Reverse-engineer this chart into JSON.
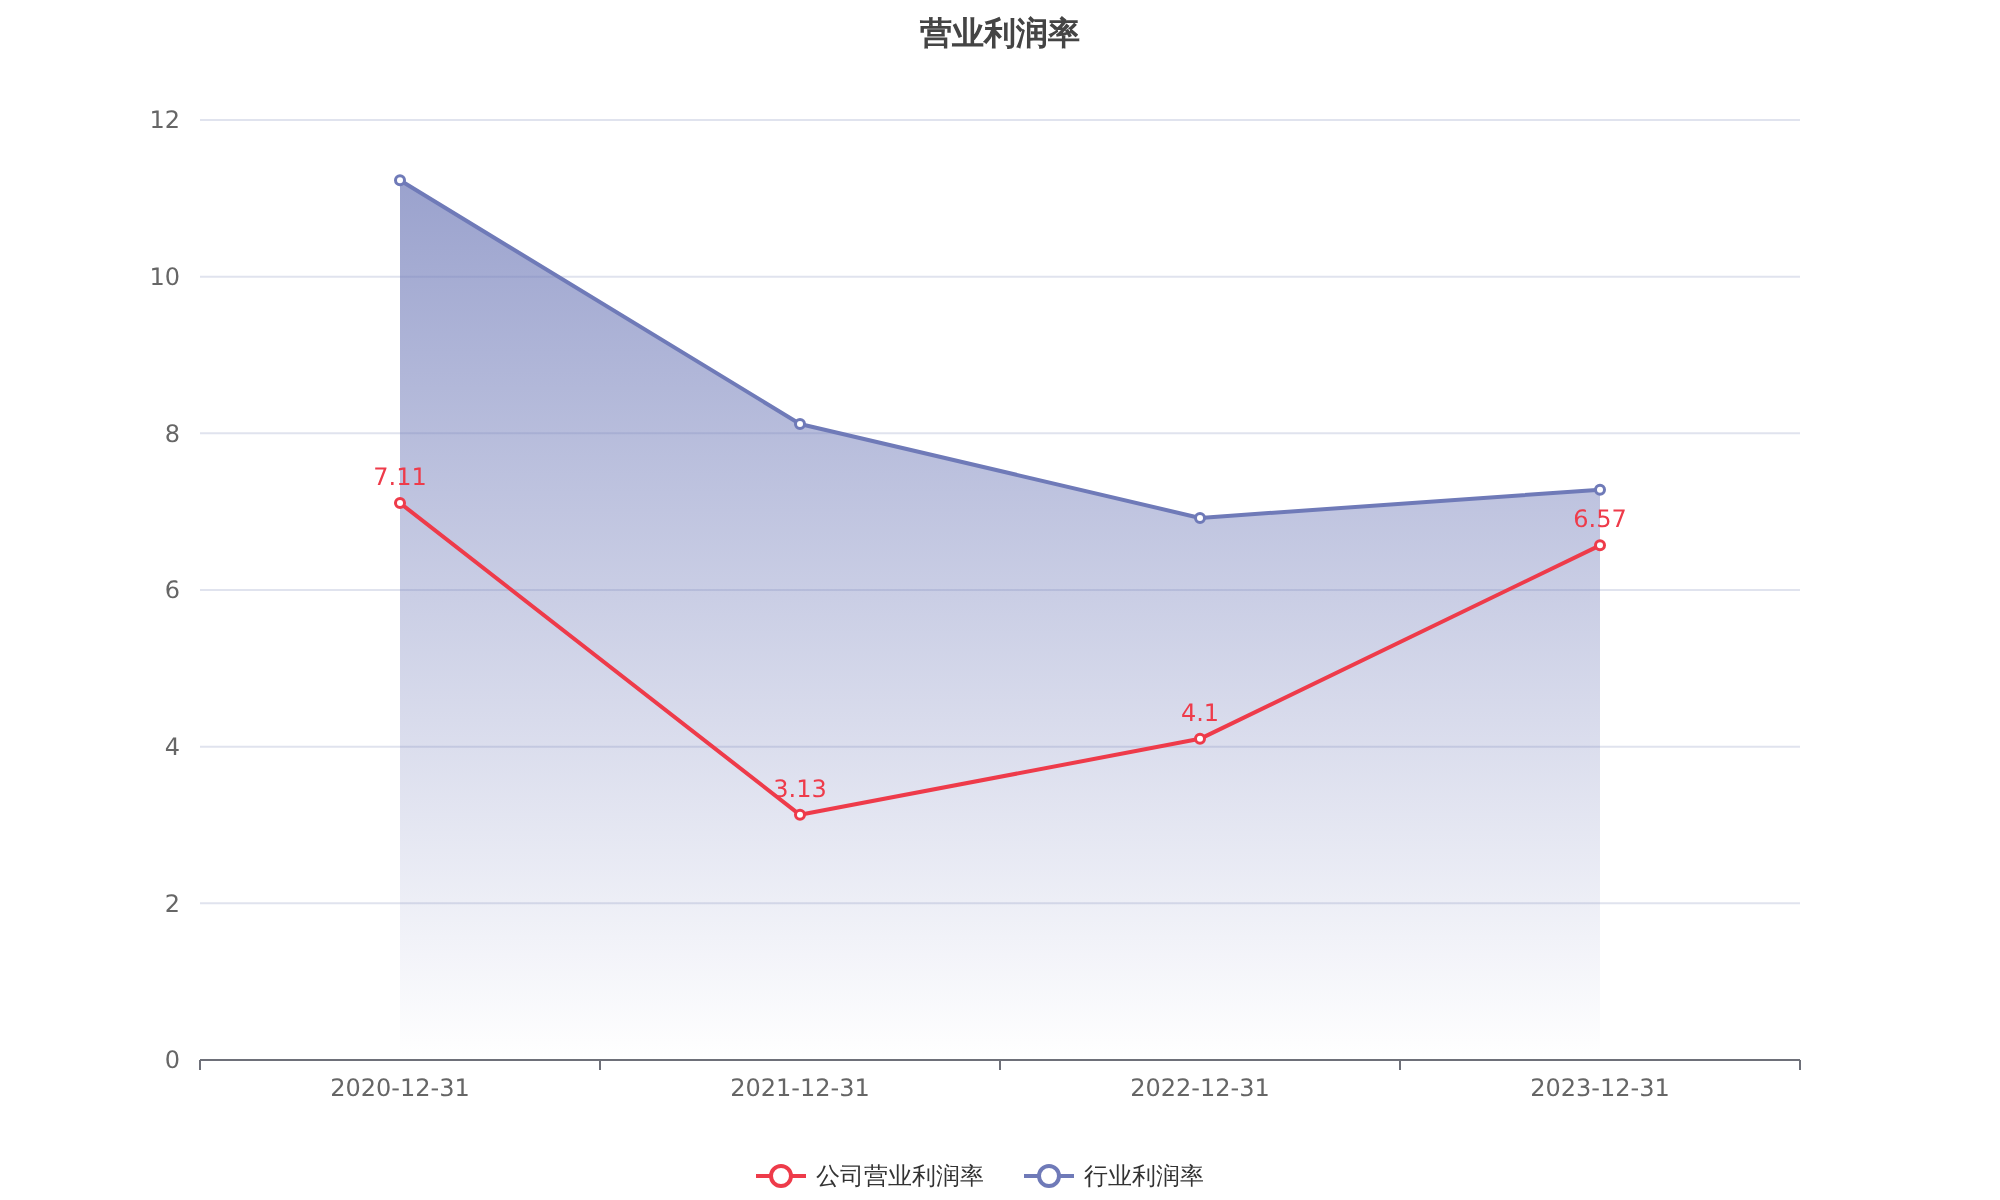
{
  "chart_data": {
    "type": "line",
    "title": "营业利润率",
    "categories": [
      "2020-12-31",
      "2021-12-31",
      "2022-12-31",
      "2023-12-31"
    ],
    "series": [
      {
        "name": "公司营业利润率",
        "color": "#ee3b4a",
        "values": [
          7.11,
          3.13,
          4.1,
          6.57
        ],
        "value_labels": [
          "7.11",
          "3.13",
          "4.1",
          "6.57"
        ]
      },
      {
        "name": "行业利润率",
        "type": "area",
        "color": "#6f7ab8",
        "values": [
          11.23,
          8.12,
          6.92,
          7.28
        ]
      }
    ],
    "ylim": [
      0,
      12
    ],
    "yticks": [
      0,
      2,
      4,
      6,
      8,
      10,
      12
    ],
    "grid": "y",
    "legend": "bottom",
    "marker": "circle"
  }
}
